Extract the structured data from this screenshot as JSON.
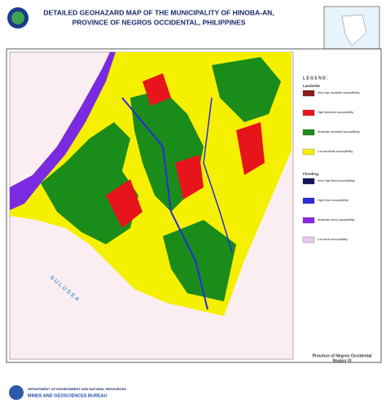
{
  "header": {
    "title_lines": [
      "DETAILED GEOHAZARD MAP OF THE MUNICIPALITY OF HINOBA-AN,",
      "PROVINCE OF NEGROS OCCIDENTAL, PHILIPPINES"
    ]
  },
  "map": {
    "sea_label": "S U L U   S E A"
  },
  "legend": {
    "title": "L E G E N D :",
    "groups": [
      {
        "heading": "Landslide",
        "items": [
          {
            "label": "Very high landslide susceptibility",
            "color": "#8b1a1a"
          },
          {
            "label": "High landslide susceptibility",
            "color": "#e8141c"
          },
          {
            "label": "Moderate landslide susceptibility",
            "color": "#1a8c1a"
          },
          {
            "label": "Low landslide susceptibility",
            "color": "#f5f000"
          }
        ]
      },
      {
        "heading": "Flooding",
        "items": [
          {
            "label": "Very High flood susceptibility",
            "color": "#14145a"
          },
          {
            "label": "High flood susceptibility",
            "color": "#2a2ae0"
          },
          {
            "label": "Moderate flood susceptibility",
            "color": "#8a2ae0"
          },
          {
            "label": "Low flood susceptibility",
            "color": "#e6c8f0"
          }
        ]
      }
    ]
  },
  "location": {
    "province": "Province of Negros Occidental",
    "region": "Region VI"
  },
  "footer": {
    "department": "DEPARTMENT OF ENVIRONMENT AND NATURAL RESOURCES",
    "bureau": "MINES AND GEOSCIENCES BUREAU"
  }
}
